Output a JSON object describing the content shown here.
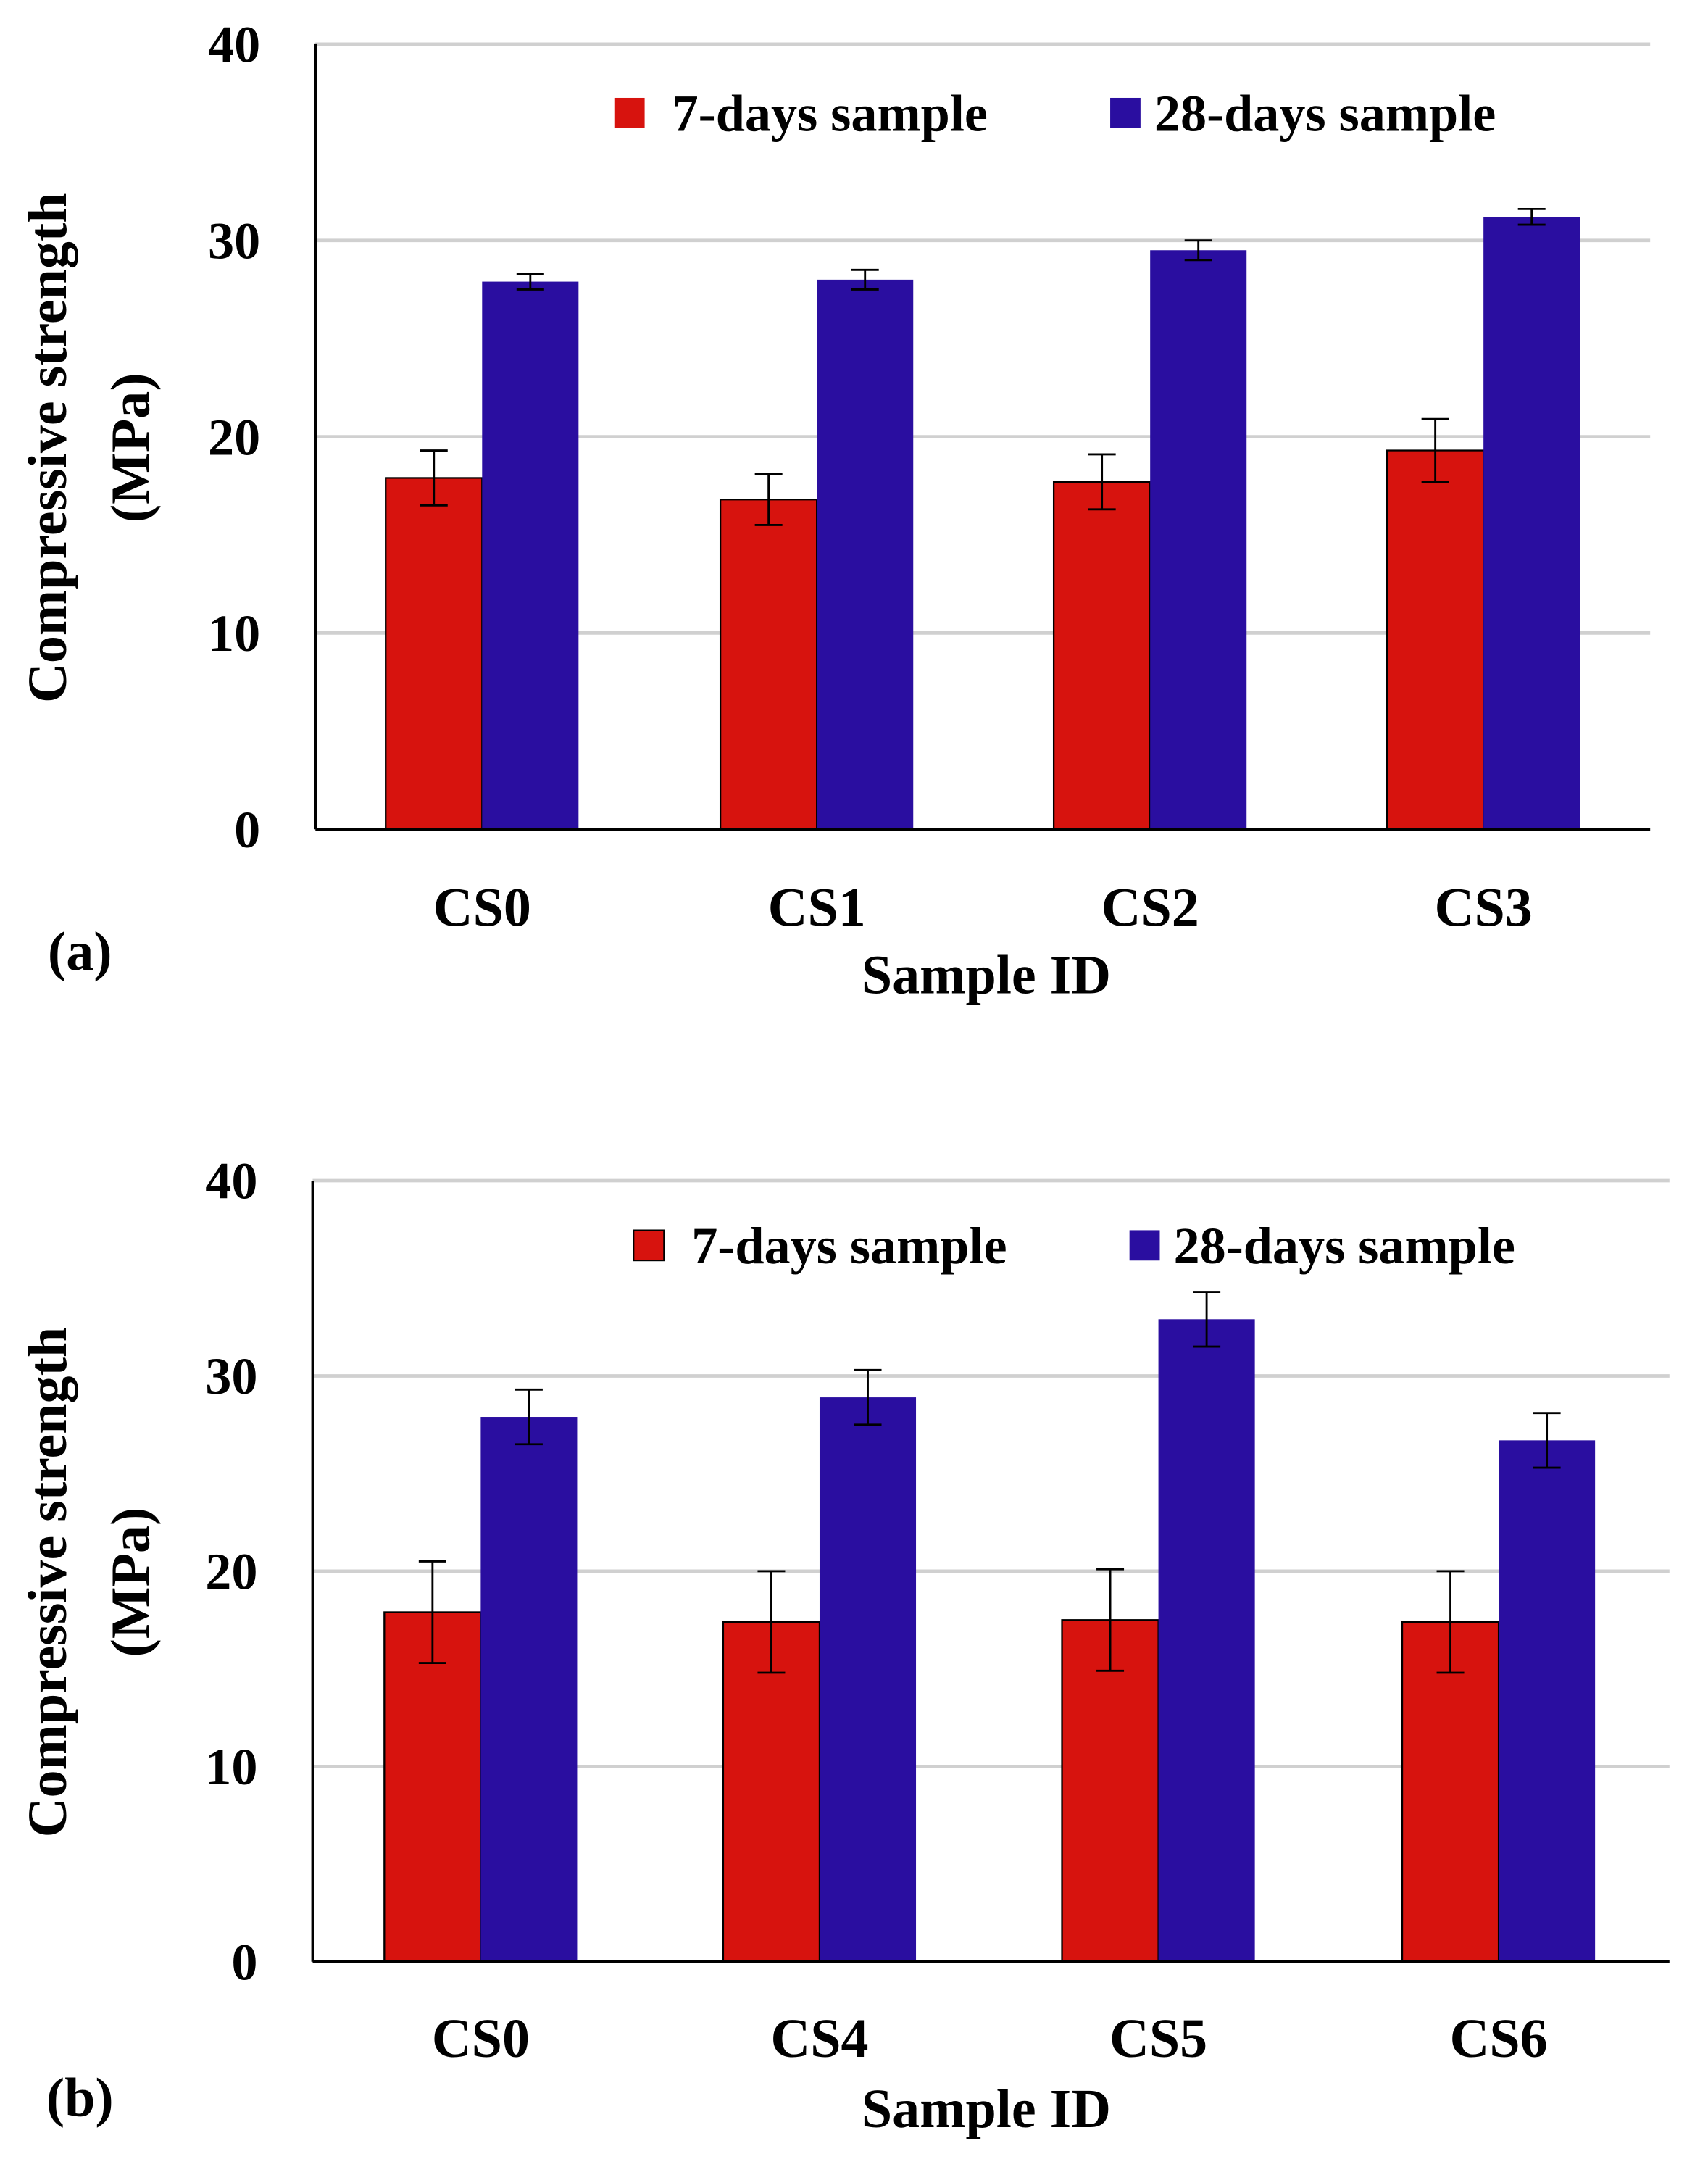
{
  "colors": {
    "series7": "#d7130e",
    "series28": "#2a0ea0",
    "grid": "#d0d0d0"
  },
  "chart_data": [
    {
      "type": "bar",
      "panel_label": "(a)",
      "xlabel": "Sample ID",
      "ylabel": "Compressive strength (MPa)",
      "ylabel_line1": "Compressive strength",
      "ylabel_line2": "(MPa)",
      "ylim": [
        0,
        40
      ],
      "yticks": [
        "0",
        "10",
        "20",
        "30",
        "40"
      ],
      "grid": true,
      "legend_position": "top",
      "categories": [
        "CS0",
        "CS1",
        "CS2",
        "CS3"
      ],
      "series": [
        {
          "name": "7-days sample",
          "values": [
            17.9,
            16.8,
            17.7,
            19.3
          ],
          "errors": [
            1.4,
            1.3,
            1.4,
            1.6
          ]
        },
        {
          "name": "28-days sample",
          "values": [
            27.9,
            28.0,
            29.5,
            31.2
          ],
          "errors": [
            0.4,
            0.5,
            0.5,
            0.4
          ]
        }
      ]
    },
    {
      "type": "bar",
      "panel_label": "(b)",
      "xlabel": "Sample ID",
      "ylabel": "Compressive strength (MPa)",
      "ylabel_line1": "Compressive strength",
      "ylabel_line2": "(MPa)",
      "ylim": [
        0,
        40
      ],
      "yticks": [
        "0",
        "10",
        "20",
        "30",
        "40"
      ],
      "grid": true,
      "legend_position": "top",
      "categories": [
        "CS0",
        "CS4",
        "CS5",
        "CS6"
      ],
      "series": [
        {
          "name": "7-days sample",
          "values": [
            17.9,
            17.4,
            17.5,
            17.4
          ],
          "errors": [
            2.6,
            2.6,
            2.6,
            2.6
          ]
        },
        {
          "name": "28-days sample",
          "values": [
            27.9,
            28.9,
            32.9,
            26.7
          ],
          "errors": [
            1.4,
            1.4,
            1.4,
            1.4
          ]
        }
      ]
    }
  ]
}
